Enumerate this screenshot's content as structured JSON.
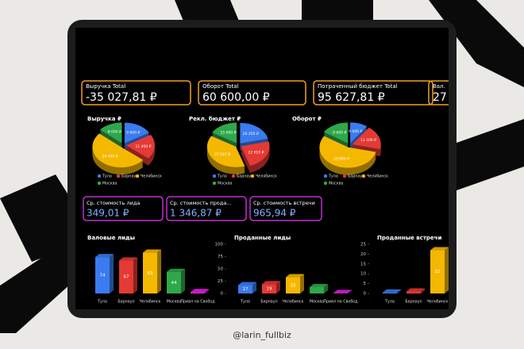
{
  "watermark": "@larin_fullbiz",
  "kpi_cards": [
    {
      "label": "Выручка Total",
      "value": "-35 027,81 ₽"
    },
    {
      "label": "Оборот Total",
      "value": "60 600,00 ₽"
    },
    {
      "label": "Потраченный бюджет Total",
      "value": "95 627,81 ₽"
    },
    {
      "label": "Вал.",
      "value": "27"
    }
  ],
  "avg_cards": [
    {
      "label": "Ср. стоимость лида",
      "value": "349,01 ₽"
    },
    {
      "label": "Ср. стоимость прода...",
      "value": "1 346,87 ₽"
    },
    {
      "label": "Ср. стоимость встречи",
      "value": "965,94 ₽"
    }
  ],
  "chart_data": [
    {
      "type": "pie",
      "title": "Выручка ₽",
      "categories": [
        "Тула",
        "Барнаул",
        "Челябинск",
        "Москва"
      ],
      "values": [
        9600,
        11400,
        29400,
        8000
      ],
      "value_labels": [
        "9 600 ₽",
        "11 400 ₽",
        "29 400 ₽",
        "8 000 ₽"
      ],
      "colors": [
        "#3a7bf0",
        "#e53935",
        "#f5b800",
        "#2ea84a"
      ]
    },
    {
      "type": "pie",
      "title": "Рекл. бюджет ₽",
      "categories": [
        "Тула",
        "Барнаул",
        "Челябинск",
        "Москва"
      ],
      "values": [
        20250,
        22610,
        37167,
        15600
      ],
      "value_labels": [
        "20 250 ₽",
        "22 610 ₽",
        "37 167 ₽",
        "15 600 ₽"
      ],
      "colors": [
        "#3a7bf0",
        "#e53935",
        "#f5b800",
        "#2ea84a"
      ]
    },
    {
      "type": "pie",
      "title": "Оборот ₽",
      "categories": [
        "Тула",
        "Барнаул",
        "Челябинск",
        "Москва"
      ],
      "values": [
        6000,
        11400,
        33600,
        9600
      ],
      "value_labels": [
        "6 000 ₽",
        "11 400 ₽",
        "33 600 ₽",
        "9 600 ₽"
      ],
      "colors": [
        "#3a7bf0",
        "#e53935",
        "#f5b800",
        "#2ea84a"
      ]
    },
    {
      "type": "bar",
      "title": "Валовые лиды",
      "categories": [
        "Тула",
        "Барнаул",
        "Челябинск",
        "Москва",
        "Привл на Свобод"
      ],
      "values": [
        74,
        67,
        83,
        44,
        3
      ],
      "ylim": [
        0,
        100
      ],
      "colors": [
        "#3a7bf0",
        "#e53935",
        "#f5b800",
        "#2ea84a",
        "#e020e0"
      ]
    },
    {
      "type": "bar",
      "title": "Проданные лиды",
      "categories": [
        "Тула",
        "Барнаул",
        "Челябинск",
        "Москва",
        "Привл на Свобод"
      ],
      "values": [
        17,
        19,
        33,
        13,
        1
      ],
      "ylim": [
        0,
        100
      ],
      "yticks": [
        0,
        25,
        50,
        75,
        100
      ],
      "colors": [
        "#3a7bf0",
        "#e53935",
        "#f5b800",
        "#2ea84a",
        "#e020e0"
      ]
    },
    {
      "type": "bar",
      "title": "Проданные встречи",
      "categories": [
        "Тула",
        "Барнаул",
        "Челябинск"
      ],
      "values": [
        0.5,
        1,
        22
      ],
      "ylim": [
        0,
        25
      ],
      "yticks": [
        0,
        5,
        10,
        15,
        20,
        25
      ],
      "colors": [
        "#3a7bf0",
        "#e53935",
        "#f5b800"
      ]
    }
  ]
}
